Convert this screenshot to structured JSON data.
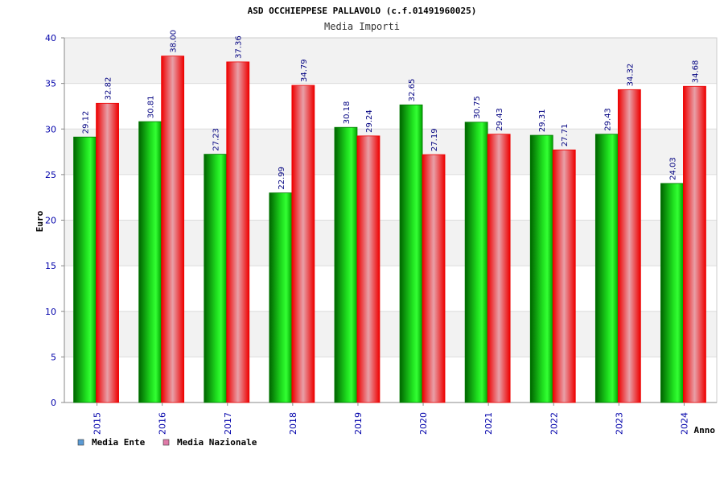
{
  "chart_data": {
    "type": "bar",
    "title": "ASD OCCHIEPPESE PALLAVOLO (c.f.01491960025)",
    "subtitle": "Media Importi",
    "xlabel": "Anno",
    "ylabel": "Euro",
    "ylim": [
      0,
      40
    ],
    "yticks": [
      "0",
      "5",
      "10",
      "15",
      "20",
      "25",
      "30",
      "35",
      "40"
    ],
    "categories": [
      "2015",
      "2016",
      "2017",
      "2018",
      "2019",
      "2020",
      "2021",
      "2022",
      "2023",
      "2024"
    ],
    "series": [
      {
        "name": "Media Ente",
        "values": [
          29.12,
          30.81,
          27.23,
          22.99,
          30.18,
          32.65,
          30.75,
          29.31,
          29.43,
          24.03
        ],
        "labels": [
          "29.12",
          "30.81",
          "27.23",
          "22.99",
          "30.18",
          "32.65",
          "30.75",
          "29.31",
          "29.43",
          "24.03"
        ]
      },
      {
        "name": "Media Nazionale",
        "values": [
          32.82,
          38.0,
          37.36,
          34.79,
          29.24,
          27.19,
          29.43,
          27.71,
          34.32,
          34.68
        ],
        "labels": [
          "32.82",
          "38.00",
          "37.36",
          "34.79",
          "29.24",
          "27.19",
          "29.43",
          "27.71",
          "34.32",
          "34.68"
        ]
      }
    ],
    "legend_position": "bottom-left",
    "grid": true,
    "colors": {
      "ente_dark": "#007a00",
      "ente_light": "#33ff33",
      "naz_dark": "#ee0000",
      "naz_light": "#e8a0a8",
      "legend_ente": "#5b9bd5",
      "legend_naz": "#e07aa8",
      "tick_text": "#0000aa",
      "value_text": "#000080",
      "band": "#f2f2f2"
    }
  }
}
